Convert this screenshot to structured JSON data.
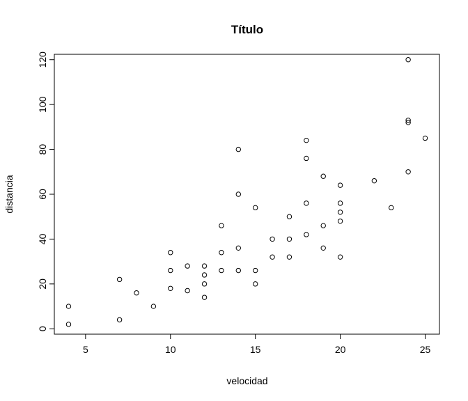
{
  "chart_data": {
    "type": "scatter",
    "title": "Título",
    "xlabel": "velocidad",
    "ylabel": "distancia",
    "xlim": [
      3.16,
      25.84
    ],
    "ylim": [
      -2.4,
      122.4
    ],
    "xticks": [
      5,
      10,
      15,
      20,
      25
    ],
    "yticks": [
      0,
      20,
      40,
      60,
      80,
      100,
      120
    ],
    "grid": false,
    "marker": "open-circle",
    "points": [
      [
        4,
        2
      ],
      [
        4,
        10
      ],
      [
        7,
        4
      ],
      [
        7,
        22
      ],
      [
        8,
        16
      ],
      [
        9,
        10
      ],
      [
        10,
        18
      ],
      [
        10,
        26
      ],
      [
        10,
        34
      ],
      [
        11,
        17
      ],
      [
        11,
        28
      ],
      [
        12,
        14
      ],
      [
        12,
        20
      ],
      [
        12,
        24
      ],
      [
        12,
        28
      ],
      [
        13,
        26
      ],
      [
        13,
        34
      ],
      [
        13,
        46
      ],
      [
        14,
        26
      ],
      [
        14,
        36
      ],
      [
        14,
        60
      ],
      [
        14,
        80
      ],
      [
        15,
        20
      ],
      [
        15,
        26
      ],
      [
        15,
        54
      ],
      [
        16,
        32
      ],
      [
        16,
        40
      ],
      [
        17,
        32
      ],
      [
        17,
        40
      ],
      [
        17,
        50
      ],
      [
        18,
        42
      ],
      [
        18,
        56
      ],
      [
        18,
        76
      ],
      [
        18,
        84
      ],
      [
        19,
        36
      ],
      [
        19,
        46
      ],
      [
        19,
        68
      ],
      [
        20,
        32
      ],
      [
        20,
        48
      ],
      [
        20,
        52
      ],
      [
        20,
        56
      ],
      [
        20,
        64
      ],
      [
        22,
        66
      ],
      [
        23,
        54
      ],
      [
        24,
        70
      ],
      [
        24,
        92
      ],
      [
        24,
        93
      ],
      [
        24,
        120
      ],
      [
        25,
        85
      ]
    ]
  }
}
